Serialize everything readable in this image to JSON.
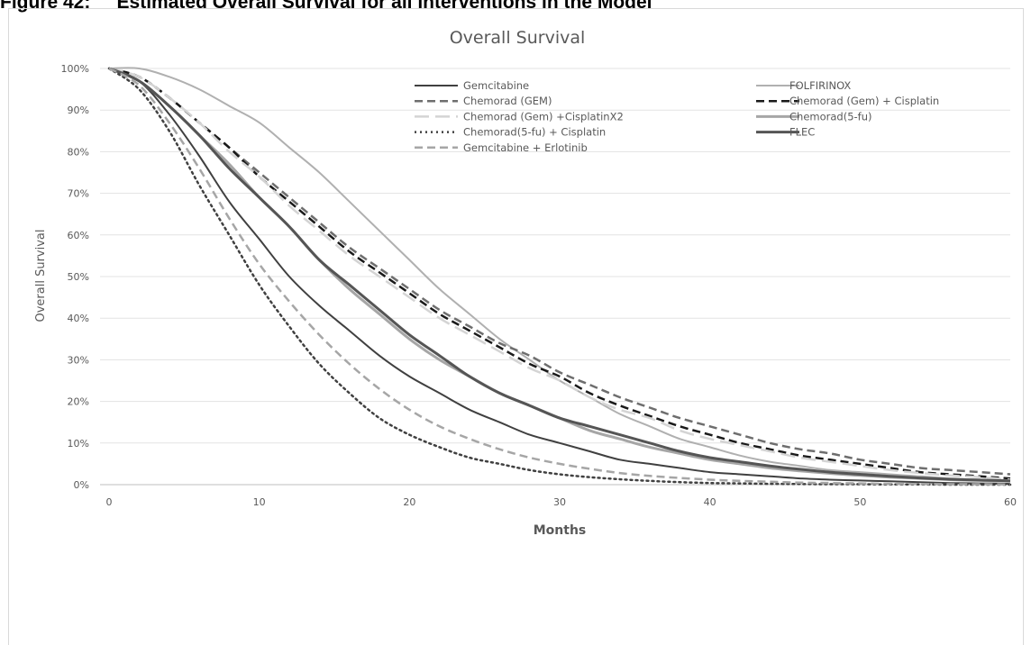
{
  "figure_heading": "Figure 42:     Estimated Overall Survival for all interventions in the Model",
  "chart_data": {
    "type": "line",
    "title": "Overall Survival",
    "xlabel": "Months",
    "ylabel": "Overall Survival",
    "xlim": [
      0,
      60
    ],
    "ylim": [
      0,
      1
    ],
    "x_ticks": [
      "0",
      "10",
      "20",
      "30",
      "40",
      "50",
      "60"
    ],
    "y_ticks": [
      "0%",
      "10%",
      "20%",
      "30%",
      "40%",
      "50%",
      "60%",
      "70%",
      "80%",
      "90%",
      "100%"
    ],
    "grid": "horizontal",
    "legend_position": "top-right",
    "x": [
      0,
      2,
      4,
      6,
      8,
      10,
      12,
      14,
      16,
      18,
      20,
      22,
      24,
      26,
      28,
      30,
      32,
      34,
      36,
      38,
      40,
      42,
      44,
      46,
      48,
      50,
      52,
      54,
      56,
      58,
      60
    ],
    "series": [
      {
        "name": "Gemcitabine",
        "color": "#404040",
        "dash": "solid",
        "width": 2,
        "values": [
          1.0,
          0.97,
          0.89,
          0.79,
          0.68,
          0.59,
          0.5,
          0.43,
          0.37,
          0.31,
          0.26,
          0.22,
          0.18,
          0.15,
          0.12,
          0.1,
          0.08,
          0.06,
          0.05,
          0.04,
          0.03,
          0.025,
          0.02,
          0.015,
          0.012,
          0.01,
          0.008,
          0.006,
          0.004,
          0.003,
          0.002
        ]
      },
      {
        "name": "FOLFIRINOX",
        "color": "#b0b0b0",
        "dash": "solid",
        "width": 2,
        "values": [
          1.0,
          1.0,
          0.98,
          0.95,
          0.91,
          0.87,
          0.81,
          0.75,
          0.68,
          0.61,
          0.54,
          0.47,
          0.41,
          0.35,
          0.3,
          0.25,
          0.21,
          0.17,
          0.14,
          0.11,
          0.09,
          0.07,
          0.055,
          0.045,
          0.035,
          0.03,
          0.025,
          0.02,
          0.015,
          0.012,
          0.01
        ]
      },
      {
        "name": "Chemorad (GEM)",
        "color": "#6e6e6e",
        "dash": "dashed",
        "width": 2.5,
        "values": [
          1.0,
          0.98,
          0.93,
          0.87,
          0.81,
          0.75,
          0.69,
          0.63,
          0.57,
          0.52,
          0.47,
          0.42,
          0.38,
          0.34,
          0.31,
          0.27,
          0.24,
          0.21,
          0.185,
          0.16,
          0.14,
          0.12,
          0.1,
          0.085,
          0.075,
          0.06,
          0.05,
          0.04,
          0.035,
          0.03,
          0.025
        ]
      },
      {
        "name": "Chemorad (Gem) + Cisplatin",
        "color": "#1a1a1a",
        "dash": "dashed",
        "width": 2.5,
        "values": [
          1.0,
          0.98,
          0.93,
          0.87,
          0.81,
          0.74,
          0.68,
          0.62,
          0.56,
          0.51,
          0.46,
          0.41,
          0.37,
          0.33,
          0.29,
          0.26,
          0.22,
          0.19,
          0.165,
          0.14,
          0.12,
          0.1,
          0.085,
          0.07,
          0.06,
          0.05,
          0.04,
          0.03,
          0.025,
          0.02,
          0.015
        ]
      },
      {
        "name": "Chemorad (Gem) +CisplatinX2",
        "color": "#d4d4d4",
        "dash": "longdash",
        "width": 2.5,
        "values": [
          1.0,
          0.98,
          0.93,
          0.87,
          0.8,
          0.74,
          0.67,
          0.61,
          0.55,
          0.5,
          0.45,
          0.4,
          0.36,
          0.32,
          0.28,
          0.25,
          0.21,
          0.18,
          0.16,
          0.13,
          0.11,
          0.095,
          0.08,
          0.065,
          0.055,
          0.045,
          0.035,
          0.028,
          0.022,
          0.018,
          0.012
        ]
      },
      {
        "name": "Chemorad(5-fu)",
        "color": "#a6a6a6",
        "dash": "solid",
        "width": 3,
        "values": [
          1.0,
          0.97,
          0.91,
          0.84,
          0.77,
          0.69,
          0.62,
          0.54,
          0.47,
          0.41,
          0.35,
          0.3,
          0.26,
          0.22,
          0.19,
          0.16,
          0.13,
          0.11,
          0.09,
          0.075,
          0.06,
          0.05,
          0.04,
          0.033,
          0.027,
          0.022,
          0.018,
          0.015,
          0.012,
          0.01,
          0.008
        ]
      },
      {
        "name": "Chemorad(5-fu) + Cisplatin",
        "color": "#404040",
        "dash": "dotted",
        "width": 2.5,
        "values": [
          1.0,
          0.95,
          0.85,
          0.72,
          0.6,
          0.48,
          0.38,
          0.29,
          0.22,
          0.16,
          0.12,
          0.09,
          0.065,
          0.05,
          0.035,
          0.025,
          0.018,
          0.013,
          0.009,
          0.006,
          0.004,
          0.003,
          0.002,
          0.0015,
          0.001,
          0.001,
          0.0005,
          0.0005,
          0.0,
          0.0,
          0.0
        ]
      },
      {
        "name": "FLEC",
        "color": "#555555",
        "dash": "solid",
        "width": 3,
        "values": [
          1.0,
          0.97,
          0.91,
          0.84,
          0.76,
          0.69,
          0.62,
          0.54,
          0.48,
          0.42,
          0.36,
          0.31,
          0.26,
          0.22,
          0.19,
          0.16,
          0.14,
          0.12,
          0.1,
          0.08,
          0.065,
          0.055,
          0.045,
          0.037,
          0.03,
          0.025,
          0.02,
          0.016,
          0.013,
          0.011,
          0.009
        ]
      },
      {
        "name": "Gemcitabine + Erlotinib",
        "color": "#a6a6a6",
        "dash": "dashed",
        "width": 2.5,
        "values": [
          1.0,
          0.96,
          0.87,
          0.76,
          0.64,
          0.53,
          0.44,
          0.36,
          0.29,
          0.23,
          0.18,
          0.14,
          0.11,
          0.085,
          0.065,
          0.05,
          0.038,
          0.028,
          0.021,
          0.016,
          0.012,
          0.009,
          0.007,
          0.005,
          0.004,
          0.003,
          0.002,
          0.0015,
          0.001,
          0.001,
          0.0005
        ]
      }
    ]
  }
}
